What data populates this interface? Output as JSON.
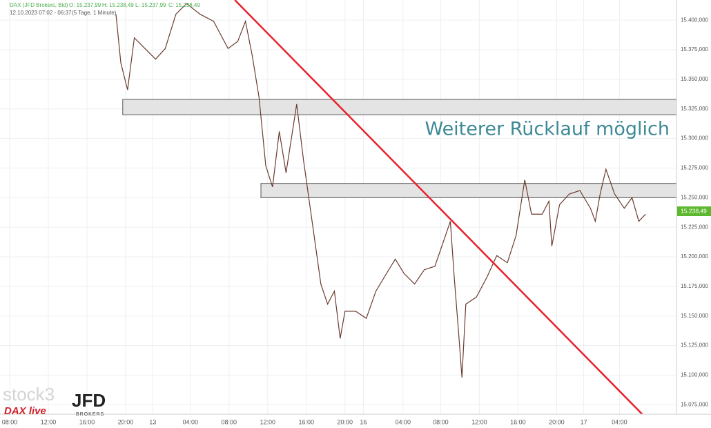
{
  "chart_data": {
    "type": "line",
    "title": "DAX (JFD Brokers, Bid)",
    "ohlc": [
      "O: 15.237,99",
      "H: 15.238,49",
      "L: 15.237,99",
      "C: 15.238,49"
    ],
    "subtitle": "12.10.2023 07:02 - 06:37",
    "period": "(5 Tage, 1 Minute)",
    "annotation": "Weiterer Rücklauf möglich",
    "watermarks": [
      "stock3",
      "JFD",
      "BROKERS",
      "DAX live"
    ],
    "last": {
      "value": 15238.49,
      "label": "15.238,49"
    },
    "x": [
      11,
      11.5,
      12.2,
      12.9,
      14,
      15.1,
      16.1,
      17.2,
      18.3,
      19.7,
      21.1,
      22.6,
      23.6,
      24.4,
      25.1,
      25.8,
      26.5,
      27.2,
      27.9,
      28.6,
      29.7,
      30.4,
      31,
      31.5,
      32.2,
      32.9,
      33.6,
      34.2,
      34.7,
      35.8,
      36.9,
      37.9,
      39,
      39.9,
      40.8,
      41.9,
      42.9,
      44,
      45.1,
      45.6,
      46,
      46.5,
      46.8,
      47.2,
      48.3,
      49.4,
      50.4,
      51.5,
      52.4,
      53.3,
      54,
      55.1,
      55.8,
      56.1,
      56.9,
      57.9,
      59,
      60.1,
      60.6,
      61.1,
      61.7,
      62.6,
      63.6,
      64.4,
      65.1,
      65.8
    ],
    "series": [
      {
        "name": "DAX",
        "color": "#6b3a2e",
        "values": [
          15405,
          15364,
          15341,
          15385,
          15376,
          15367,
          15376,
          15405,
          15414,
          15405,
          15399,
          15376,
          15382,
          15399,
          15370,
          15335,
          15277,
          15259,
          15306,
          15271,
          15329,
          15282,
          15247,
          15218,
          15177,
          15160,
          15171,
          15131,
          15154,
          15154,
          15148,
          15171,
          15186,
          15198,
          15186,
          15177,
          15189,
          15192,
          15218,
          15230,
          15183,
          15131,
          15098,
          15160,
          15166,
          15183,
          15201,
          15195,
          15218,
          15265,
          15236,
          15236,
          15247,
          15209,
          15244,
          15253,
          15256,
          15241,
          15230,
          15253,
          15274,
          15253,
          15241,
          15250,
          15230,
          15236
        ]
      }
    ],
    "zones": [
      {
        "from": 15320,
        "to": 15333,
        "start": 11.7
      },
      {
        "from": 15250,
        "to": 15262,
        "start": 26
      }
    ],
    "trendline": {
      "x": [
        23.3,
        66.9
      ],
      "y": [
        15417,
        15055
      ],
      "color": "#e8202a"
    },
    "xlim": [
      -1,
      69
    ],
    "ylim": [
      15067,
      15417
    ],
    "xticks": [
      {
        "value": 0,
        "label": "08:00"
      },
      {
        "value": 4,
        "label": "12:00"
      },
      {
        "value": 8,
        "label": "16:00"
      },
      {
        "value": 12,
        "label": "20:00"
      },
      {
        "value": 14.8,
        "label": "13"
      },
      {
        "value": 18.7,
        "label": "04:00"
      },
      {
        "value": 22.7,
        "label": "08:00"
      },
      {
        "value": 26.7,
        "label": "12:00"
      },
      {
        "value": 30.7,
        "label": "16:00"
      },
      {
        "value": 34.7,
        "label": "20:00"
      },
      {
        "value": 36.6,
        "label": "16"
      },
      {
        "value": 40.7,
        "label": "04:00"
      },
      {
        "value": 44.6,
        "label": "08:00"
      },
      {
        "value": 48.6,
        "label": "12:00"
      },
      {
        "value": 52.6,
        "label": "16:00"
      },
      {
        "value": 56.6,
        "label": "20:00"
      },
      {
        "value": 59.4,
        "label": "17"
      },
      {
        "value": 63.1,
        "label": "04:00"
      }
    ],
    "yticks": [
      {
        "value": 15075,
        "label": "15.075,000"
      },
      {
        "value": 15100,
        "label": "15.100,000"
      },
      {
        "value": 15125,
        "label": "15.125,000"
      },
      {
        "value": 15150,
        "label": "15.150,000"
      },
      {
        "value": 15175,
        "label": "15.175,000"
      },
      {
        "value": 15200,
        "label": "15.200,000"
      },
      {
        "value": 15225,
        "label": "15.225,000"
      },
      {
        "value": 15250,
        "label": "15.250,000"
      },
      {
        "value": 15275,
        "label": "15.275,000"
      },
      {
        "value": 15300,
        "label": "15.300,000"
      },
      {
        "value": 15325,
        "label": "15.325,000"
      },
      {
        "value": 15350,
        "label": "15.350,000"
      },
      {
        "value": 15375,
        "label": "15.375,000"
      },
      {
        "value": 15400,
        "label": "15.400,000"
      }
    ],
    "grid": true
  }
}
